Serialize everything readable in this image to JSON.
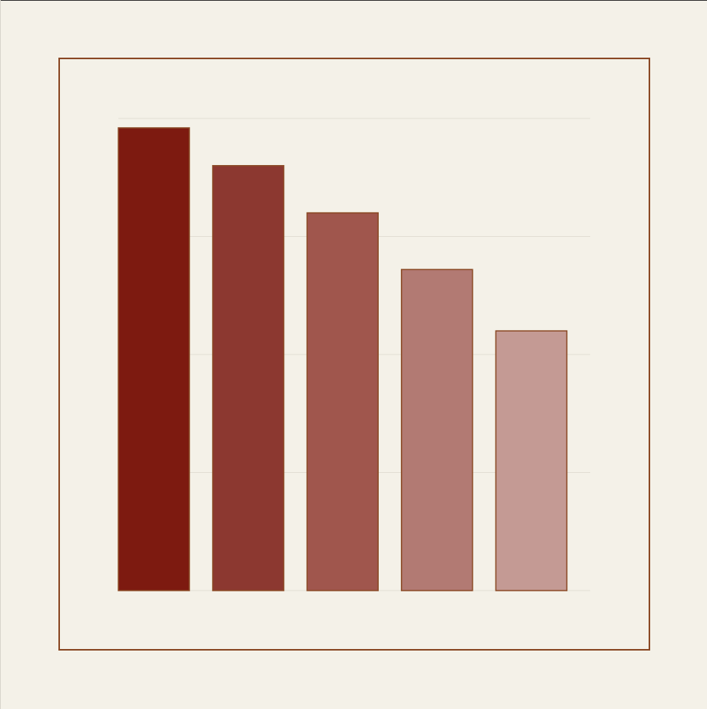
{
  "chart_data": {
    "type": "bar",
    "title": "",
    "xlabel": "",
    "ylabel": "",
    "categories": [
      "",
      "",
      "",
      "",
      ""
    ],
    "values": [
      98,
      90,
      80,
      68,
      55
    ],
    "ylim": [
      0,
      100
    ],
    "yticks": [
      0,
      25,
      50,
      75,
      100
    ],
    "grid": true,
    "legend": "none",
    "colors": {
      "bars": [
        "#7d1a10",
        "#8c3830",
        "#a0564d",
        "#b27a73",
        "#c49a94"
      ],
      "bar_outline": "#8b4a26",
      "frame": "#8b4a26",
      "grid": "#e2ded4",
      "background": "#f4f1e8"
    }
  }
}
